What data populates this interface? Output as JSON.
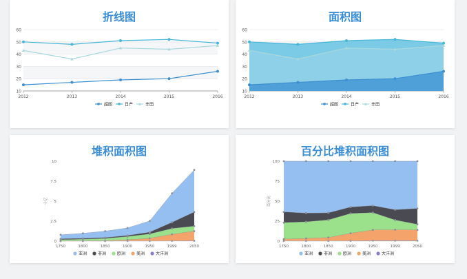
{
  "chart_data": [
    {
      "type": "line",
      "title": "折线图",
      "categories": [
        "2012",
        "2013",
        "2014",
        "2015",
        "2016"
      ],
      "ylim": [
        10,
        60
      ],
      "yticks": [
        10,
        20,
        30,
        40,
        50,
        60
      ],
      "grid": true,
      "legend_position": "bottom",
      "series": [
        {
          "name": "超图",
          "values": [
            15,
            17,
            19,
            20,
            26
          ],
          "color": "#3d8fd0",
          "marker": "circle"
        },
        {
          "name": "日产",
          "values": [
            50,
            48,
            51,
            52,
            49
          ],
          "color": "#45b6d6",
          "marker": "circle"
        },
        {
          "name": "丰田",
          "values": [
            43,
            36,
            45,
            44,
            47
          ],
          "color": "#a9d8dc",
          "marker": "triangle"
        }
      ]
    },
    {
      "type": "area",
      "title": "面积图",
      "categories": [
        "2012",
        "2013",
        "2014",
        "2015",
        "2016"
      ],
      "ylim": [
        10,
        60
      ],
      "yticks": [
        10,
        20,
        30,
        40,
        50,
        60
      ],
      "grid": true,
      "legend_position": "bottom",
      "series": [
        {
          "name": "超图",
          "values": [
            15,
            17,
            19,
            20,
            26
          ],
          "color": "#3d8fd0",
          "fill": "#4f9fd8",
          "marker": "circle"
        },
        {
          "name": "日产",
          "values": [
            50,
            48,
            51,
            52,
            49
          ],
          "color": "#45b6d6",
          "fill": "#7ccbe6",
          "marker": "circle"
        },
        {
          "name": "丰田",
          "values": [
            43,
            36,
            45,
            44,
            47
          ],
          "color": "#a9d8dc",
          "fill": "#9dd6e8",
          "marker": "triangle"
        }
      ]
    },
    {
      "type": "area",
      "stacked": true,
      "title": "堆积面积图",
      "categories": [
        "1750",
        "1800",
        "1850",
        "1900",
        "1950",
        "1999",
        "2050"
      ],
      "ylabel": "十亿",
      "ylim": [
        0,
        10
      ],
      "yticks": [
        0,
        2.5,
        5,
        7.5,
        10
      ],
      "ytick_labels": [
        "0",
        "2.5",
        "5",
        "7.5",
        "10"
      ],
      "legend_position": "bottom",
      "series": [
        {
          "name": "大洋洲",
          "values": [
            0.002,
            0.002,
            0.002,
            0.006,
            0.013,
            0.03,
            0.046
          ],
          "color": "#8c7ad8"
        },
        {
          "name": "美洲",
          "values": [
            0.018,
            0.031,
            0.054,
            0.156,
            0.339,
            0.818,
            1.201
          ],
          "color": "#f4a46a"
        },
        {
          "name": "欧洲",
          "values": [
            0.163,
            0.203,
            0.276,
            0.408,
            0.547,
            0.729,
            0.628
          ],
          "color": "#9be08a"
        },
        {
          "name": "非洲",
          "values": [
            0.106,
            0.107,
            0.111,
            0.133,
            0.221,
            0.767,
            1.766
          ],
          "color": "#4a4a52"
        },
        {
          "name": "亚洲",
          "values": [
            0.502,
            0.635,
            0.809,
            0.947,
            1.402,
            3.634,
            5.268
          ],
          "color": "#95bff0"
        }
      ],
      "legend_order": [
        "亚洲",
        "非洲",
        "欧洲",
        "美洲",
        "大洋洲"
      ]
    },
    {
      "type": "area",
      "stacked": "percent",
      "title": "百分比堆积面积图",
      "categories": [
        "1750",
        "1800",
        "1850",
        "1900",
        "1950",
        "1999",
        "2050"
      ],
      "ylabel": "百分比",
      "ylim": [
        0,
        100
      ],
      "yticks": [
        0,
        25,
        50,
        75,
        100
      ],
      "ytick_labels": [
        "0",
        "25",
        "50",
        "75",
        "100"
      ],
      "legend_position": "bottom",
      "series": [
        {
          "name": "大洋洲",
          "values": [
            0.002,
            0.002,
            0.002,
            0.006,
            0.013,
            0.03,
            0.046
          ],
          "color": "#8c7ad8"
        },
        {
          "name": "美洲",
          "values": [
            0.018,
            0.031,
            0.054,
            0.156,
            0.339,
            0.818,
            1.201
          ],
          "color": "#f4a46a"
        },
        {
          "name": "欧洲",
          "values": [
            0.163,
            0.203,
            0.276,
            0.408,
            0.547,
            0.729,
            0.628
          ],
          "color": "#9be08a"
        },
        {
          "name": "非洲",
          "values": [
            0.106,
            0.107,
            0.111,
            0.133,
            0.221,
            0.767,
            1.766
          ],
          "color": "#4a4a52"
        },
        {
          "name": "亚洲",
          "values": [
            0.502,
            0.635,
            0.809,
            0.947,
            1.402,
            3.634,
            5.268
          ],
          "color": "#95bff0"
        }
      ],
      "legend_order": [
        "亚洲",
        "非洲",
        "欧洲",
        "美洲",
        "大洋洲"
      ]
    }
  ]
}
